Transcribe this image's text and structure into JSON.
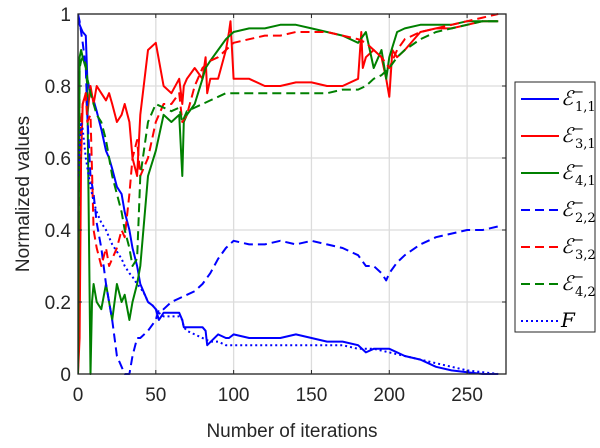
{
  "chart_data": {
    "type": "line",
    "xlabel": "Number of iterations",
    "ylabel": "Normalized values",
    "xlim": [
      0,
      275
    ],
    "ylim": [
      0,
      1
    ],
    "xticks": [
      0,
      50,
      100,
      150,
      200,
      250
    ],
    "yticks": [
      0,
      0.2,
      0.4,
      0.6,
      0.8,
      1
    ],
    "xtick_labels": [
      "0",
      "50",
      "100",
      "150",
      "200",
      "250"
    ],
    "ytick_labels": [
      "0",
      "0.2",
      "0.4",
      "0.6",
      "0.8",
      "1"
    ],
    "grid": true,
    "legend_position": "outside-right",
    "series": [
      {
        "name": "E_{1,1}^-",
        "label_main": "ℰ",
        "label_sub": "1,1",
        "label_sup": "−",
        "color": "#0000FF",
        "dash": "solid",
        "x": [
          0,
          1,
          2,
          3,
          5,
          6,
          8,
          10,
          12,
          15,
          18,
          20,
          22,
          25,
          28,
          30,
          33,
          35,
          38,
          40,
          43,
          45,
          48,
          50,
          52,
          55,
          60,
          65,
          67,
          68,
          70,
          75,
          80,
          82,
          83,
          90,
          95,
          97,
          100,
          110,
          120,
          130,
          140,
          150,
          160,
          170,
          180,
          185,
          190,
          195,
          200,
          205,
          210,
          220,
          230,
          240,
          250,
          260,
          270
        ],
        "y": [
          1.0,
          0.97,
          0.96,
          0.95,
          0.94,
          0.82,
          0.78,
          0.76,
          0.73,
          0.68,
          0.62,
          0.6,
          0.57,
          0.52,
          0.5,
          0.45,
          0.4,
          0.35,
          0.3,
          0.25,
          0.22,
          0.2,
          0.19,
          0.18,
          0.15,
          0.17,
          0.17,
          0.17,
          0.15,
          0.13,
          0.13,
          0.13,
          0.13,
          0.12,
          0.08,
          0.11,
          0.1,
          0.1,
          0.11,
          0.1,
          0.1,
          0.1,
          0.11,
          0.1,
          0.09,
          0.09,
          0.08,
          0.06,
          0.07,
          0.07,
          0.07,
          0.06,
          0.05,
          0.04,
          0.02,
          0.01,
          0.005,
          0.0,
          0.0
        ]
      },
      {
        "name": "E_{3,1}^-",
        "label_main": "ℰ",
        "label_sub": "3,1",
        "label_sup": "−",
        "color": "#FF0000",
        "dash": "solid",
        "x": [
          0,
          1,
          2,
          3,
          5,
          6,
          8,
          10,
          12,
          15,
          18,
          20,
          22,
          25,
          28,
          30,
          33,
          35,
          38,
          40,
          45,
          50,
          55,
          60,
          65,
          67,
          68,
          70,
          75,
          80,
          82,
          83,
          85,
          90,
          95,
          97,
          98,
          100,
          110,
          120,
          130,
          140,
          150,
          160,
          170,
          180,
          182,
          183,
          185,
          190,
          195,
          198,
          200,
          202,
          205,
          210,
          220,
          230,
          240,
          250,
          260,
          270
        ],
        "y": [
          0.0,
          0.1,
          0.6,
          0.75,
          0.78,
          0.72,
          0.8,
          0.75,
          0.8,
          0.78,
          0.76,
          0.78,
          0.75,
          0.7,
          0.72,
          0.75,
          0.7,
          0.6,
          0.55,
          0.72,
          0.9,
          0.92,
          0.8,
          0.78,
          0.82,
          0.75,
          0.8,
          0.82,
          0.85,
          0.82,
          0.88,
          0.78,
          0.82,
          0.82,
          0.9,
          0.95,
          0.98,
          0.82,
          0.82,
          0.8,
          0.8,
          0.81,
          0.81,
          0.8,
          0.8,
          0.82,
          0.95,
          0.85,
          0.88,
          0.9,
          0.88,
          0.82,
          0.77,
          0.9,
          0.88,
          0.9,
          0.95,
          0.96,
          0.96,
          0.97,
          0.98,
          0.98
        ]
      },
      {
        "name": "E_{4,1}^-",
        "label_main": "ℰ",
        "label_sub": "4,1",
        "label_sup": "−",
        "color": "#008000",
        "dash": "solid",
        "x": [
          0,
          1,
          2,
          3,
          5,
          6,
          8,
          9,
          10,
          12,
          15,
          18,
          20,
          22,
          25,
          28,
          30,
          33,
          35,
          38,
          40,
          45,
          50,
          55,
          60,
          65,
          67,
          68,
          70,
          75,
          80,
          82,
          85,
          90,
          95,
          100,
          110,
          120,
          130,
          140,
          150,
          160,
          170,
          180,
          185,
          190,
          195,
          198,
          200,
          205,
          210,
          220,
          230,
          240,
          250,
          260,
          270
        ],
        "y": [
          0.0,
          0.88,
          0.9,
          0.88,
          0.85,
          0.8,
          0.0,
          0.2,
          0.25,
          0.2,
          0.18,
          0.25,
          0.2,
          0.15,
          0.25,
          0.2,
          0.22,
          0.15,
          0.2,
          0.25,
          0.3,
          0.55,
          0.62,
          0.72,
          0.7,
          0.72,
          0.55,
          0.7,
          0.72,
          0.75,
          0.82,
          0.85,
          0.87,
          0.9,
          0.93,
          0.95,
          0.96,
          0.96,
          0.97,
          0.97,
          0.96,
          0.95,
          0.94,
          0.92,
          0.95,
          0.85,
          0.9,
          0.82,
          0.88,
          0.95,
          0.96,
          0.97,
          0.97,
          0.97,
          0.98,
          0.98,
          0.98
        ]
      },
      {
        "name": "E_{2,2}^-",
        "label_main": "ℰ",
        "label_sub": "2,2",
        "label_sup": "−",
        "color": "#0000FF",
        "dash": "dashed",
        "x": [
          0,
          1,
          2,
          3,
          5,
          6,
          8,
          10,
          12,
          15,
          18,
          20,
          22,
          25,
          28,
          30,
          33,
          35,
          38,
          40,
          45,
          50,
          52,
          55,
          60,
          65,
          70,
          75,
          80,
          85,
          90,
          95,
          100,
          110,
          120,
          130,
          140,
          150,
          160,
          170,
          180,
          185,
          190,
          195,
          198,
          200,
          205,
          210,
          220,
          230,
          240,
          250,
          260,
          270
        ],
        "y": [
          1.0,
          0.98,
          0.95,
          0.92,
          0.85,
          0.72,
          0.55,
          0.5,
          0.42,
          0.35,
          0.25,
          0.2,
          0.15,
          0.05,
          0.02,
          0.0,
          0.0,
          0.05,
          0.1,
          0.1,
          0.12,
          0.15,
          0.18,
          0.18,
          0.2,
          0.21,
          0.22,
          0.23,
          0.25,
          0.28,
          0.32,
          0.35,
          0.37,
          0.36,
          0.36,
          0.37,
          0.36,
          0.37,
          0.36,
          0.35,
          0.33,
          0.3,
          0.3,
          0.28,
          0.26,
          0.28,
          0.31,
          0.33,
          0.36,
          0.38,
          0.39,
          0.4,
          0.4,
          0.41
        ]
      },
      {
        "name": "E_{3,2}^-",
        "label_main": "ℰ",
        "label_sub": "3,2",
        "label_sup": "−",
        "color": "#FF0000",
        "dash": "dashed",
        "x": [
          0,
          1,
          2,
          3,
          5,
          6,
          8,
          10,
          12,
          15,
          18,
          20,
          22,
          25,
          28,
          30,
          33,
          35,
          38,
          40,
          45,
          50,
          55,
          60,
          65,
          67,
          70,
          75,
          80,
          85,
          90,
          95,
          100,
          110,
          120,
          130,
          140,
          150,
          160,
          170,
          180,
          185,
          190,
          195,
          200,
          205,
          210,
          220,
          230,
          240,
          250,
          260,
          270
        ],
        "y": [
          0.0,
          0.55,
          0.7,
          0.75,
          0.78,
          0.7,
          0.72,
          0.4,
          0.35,
          0.3,
          0.35,
          0.3,
          0.32,
          0.35,
          0.4,
          0.38,
          0.5,
          0.6,
          0.65,
          0.55,
          0.6,
          0.7,
          0.75,
          0.75,
          0.78,
          0.7,
          0.72,
          0.8,
          0.85,
          0.87,
          0.88,
          0.9,
          0.92,
          0.93,
          0.94,
          0.94,
          0.95,
          0.95,
          0.95,
          0.94,
          0.93,
          0.92,
          0.9,
          0.88,
          0.85,
          0.9,
          0.93,
          0.95,
          0.96,
          0.97,
          0.98,
          0.99,
          1.0
        ]
      },
      {
        "name": "E_{4,2}^-",
        "label_main": "ℰ",
        "label_sub": "4,2",
        "label_sup": "−",
        "color": "#008000",
        "dash": "dashed",
        "x": [
          0,
          1,
          2,
          3,
          5,
          6,
          8,
          10,
          12,
          15,
          18,
          20,
          22,
          25,
          28,
          30,
          33,
          35,
          38,
          40,
          45,
          50,
          55,
          60,
          65,
          67,
          70,
          75,
          80,
          85,
          90,
          95,
          100,
          110,
          120,
          130,
          140,
          150,
          160,
          170,
          180,
          185,
          190,
          195,
          200,
          205,
          210,
          220,
          230,
          240,
          250,
          260,
          270
        ],
        "y": [
          0.0,
          0.85,
          0.87,
          0.88,
          0.86,
          0.82,
          0.78,
          0.75,
          0.72,
          0.7,
          0.65,
          0.6,
          0.55,
          0.5,
          0.45,
          0.4,
          0.35,
          0.3,
          0.32,
          0.55,
          0.7,
          0.75,
          0.74,
          0.73,
          0.74,
          0.7,
          0.73,
          0.74,
          0.75,
          0.76,
          0.77,
          0.78,
          0.78,
          0.78,
          0.78,
          0.78,
          0.78,
          0.78,
          0.78,
          0.79,
          0.79,
          0.8,
          0.82,
          0.83,
          0.85,
          0.88,
          0.9,
          0.93,
          0.95,
          0.96,
          0.97,
          0.98,
          0.98
        ]
      },
      {
        "name": "F",
        "label_main": "F",
        "label_sub": "",
        "label_sup": "",
        "color": "#0000FF",
        "dash": "dotted",
        "x": [
          0,
          1,
          2,
          3,
          5,
          8,
          10,
          12,
          15,
          18,
          20,
          22,
          25,
          28,
          30,
          33,
          35,
          38,
          40,
          43,
          45,
          48,
          50,
          52,
          55,
          60,
          65,
          67,
          68,
          70,
          75,
          80,
          85,
          90,
          95,
          100,
          110,
          120,
          130,
          140,
          150,
          160,
          170,
          180,
          190,
          200,
          210,
          220,
          230,
          240,
          250,
          260,
          270
        ],
        "y": [
          0.55,
          0.62,
          0.7,
          0.68,
          0.6,
          0.52,
          0.48,
          0.45,
          0.42,
          0.4,
          0.38,
          0.36,
          0.34,
          0.32,
          0.3,
          0.28,
          0.27,
          0.25,
          0.24,
          0.22,
          0.2,
          0.19,
          0.18,
          0.17,
          0.16,
          0.16,
          0.16,
          0.15,
          0.13,
          0.12,
          0.11,
          0.1,
          0.09,
          0.09,
          0.08,
          0.08,
          0.08,
          0.08,
          0.08,
          0.08,
          0.08,
          0.08,
          0.08,
          0.07,
          0.07,
          0.06,
          0.05,
          0.04,
          0.03,
          0.02,
          0.01,
          0.005,
          0.0
        ]
      }
    ]
  }
}
